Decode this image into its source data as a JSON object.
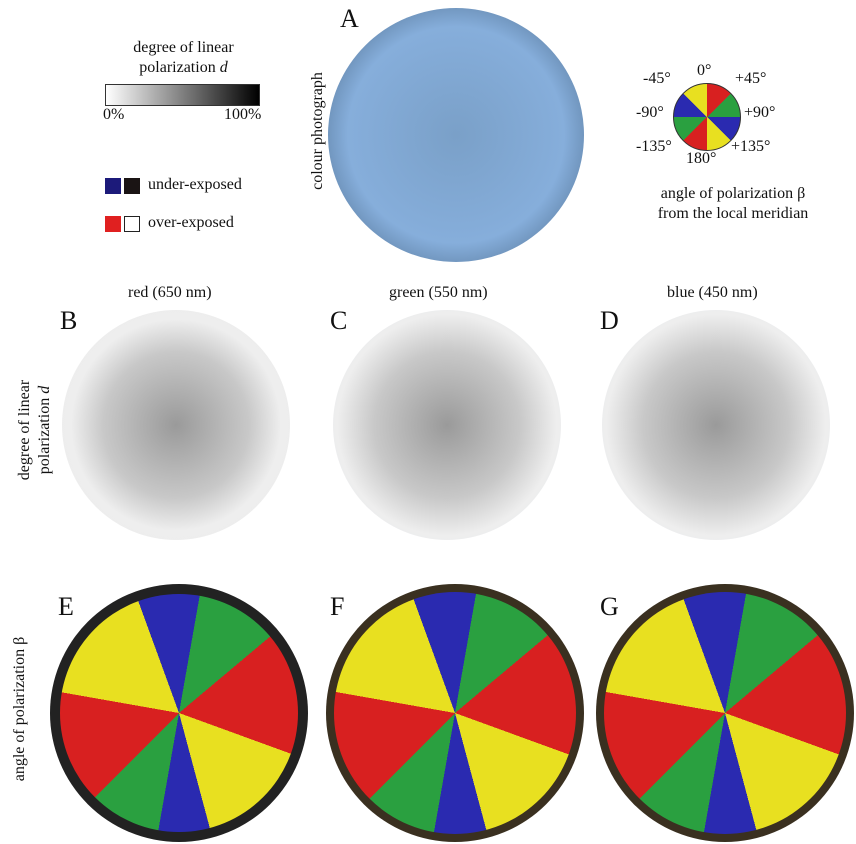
{
  "panel_labels": [
    "A",
    "B",
    "C",
    "D",
    "E",
    "F",
    "G"
  ],
  "legend_d": {
    "title_lines": [
      "degree of linear",
      "polarization"
    ],
    "title_symbol": "d",
    "min_label": "0%",
    "max_label": "100%"
  },
  "exposure_legend": [
    "under-exposed",
    "over-exposed"
  ],
  "photo_label": "colour photograph",
  "angle_legend": {
    "ticks": [
      "0°",
      "+45°",
      "+90°",
      "+135°",
      "180°",
      "-135°",
      "-90°",
      "-45°"
    ],
    "caption": [
      "angle of polarization β",
      "from the local meridian"
    ]
  },
  "columns": [
    "red (650 nm)",
    "green (550 nm)",
    "blue (450 nm)"
  ],
  "rows": {
    "degree": [
      "degree of linear",
      "polarization"
    ],
    "degree_symbol": "d",
    "angle": "angle of polarization β"
  }
}
